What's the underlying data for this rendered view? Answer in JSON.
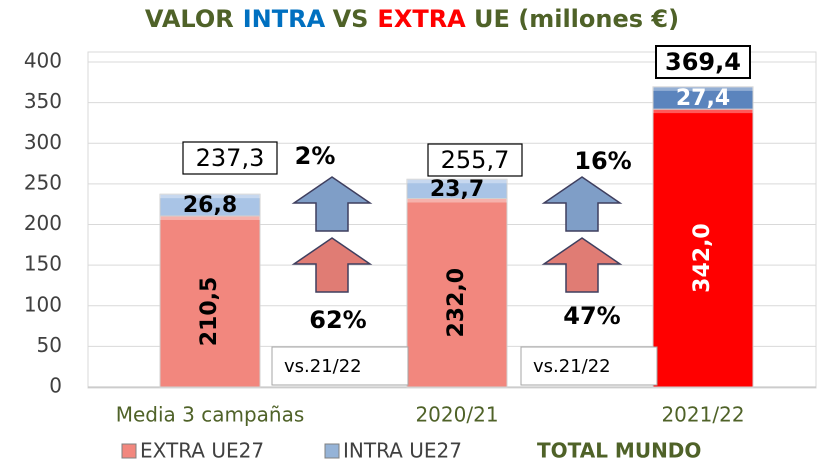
{
  "chart_data": {
    "type": "stacked_bar",
    "title_parts": [
      "VALOR",
      "INTRA",
      "VS",
      "EXTRA",
      "UE (millones €)"
    ],
    "title_colors": [
      "#4f6228",
      "#0070c0",
      "#4f6228",
      "#ff0000",
      "#4f6228"
    ],
    "categories": [
      "Media 3 campañas",
      "2020/21",
      "2021/22"
    ],
    "series": [
      {
        "name": "EXTRA UE27",
        "color": "#f2877e",
        "colors": [
          "#f2877e",
          "#f2877e",
          "#ff0000"
        ],
        "values": [
          210.5,
          232.0,
          342.0
        ],
        "value_labels": [
          "210,5",
          "232,0",
          "342,0"
        ]
      },
      {
        "name": "INTRA UE27",
        "color": "#95b3d7",
        "colors": [
          "#a9c4e6",
          "#a9c4e6",
          "#5b84bd"
        ],
        "values": [
          26.8,
          23.7,
          27.4
        ],
        "value_labels": [
          "26,8",
          "23,7",
          "27,4"
        ]
      }
    ],
    "totals": {
      "values": [
        237.3,
        255.7,
        369.4
      ],
      "value_labels": [
        "237,3",
        "255,7",
        "369,4"
      ]
    },
    "total_legend": "TOTAL MUNDO",
    "changes": [
      {
        "intra": {
          "value": 2,
          "label": "2%"
        },
        "extra": {
          "value": 62,
          "label": "62%"
        },
        "note": "vs.21/22"
      },
      {
        "intra": {
          "value": 16,
          "label": "16%"
        },
        "extra": {
          "value": 47,
          "label": "47%"
        },
        "note": "vs.21/22"
      }
    ],
    "ylim": [
      0,
      400
    ],
    "yticks": [
      0,
      50,
      100,
      150,
      200,
      250,
      300,
      350,
      400
    ],
    "grid": true
  }
}
